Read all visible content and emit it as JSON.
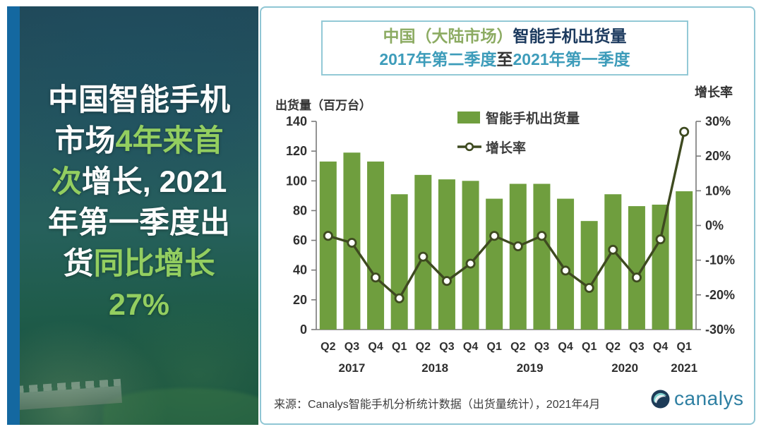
{
  "left_panel": {
    "headline": {
      "line1_white": "中国智能手机",
      "line2_white": "市场",
      "line2_green": "4年来首",
      "line3_green": "次",
      "line3_white": "增长, 2021",
      "line4_white": "年第一季度出",
      "line5_white": "货",
      "line5_green": "同比增长",
      "line6_green": "27%"
    }
  },
  "title_box": {
    "line1_green": "中国（大陆市场）",
    "line1_navy": "智能手机出货量",
    "line2_teal_a": "2017年第二季度",
    "line2_dark": "至",
    "line2_teal_b": "2021年第一季度"
  },
  "chart_data": {
    "type": "bar",
    "title": "中国（大陆市场）智能手机出货量",
    "subtitle": "2017年第二季度至2021年第一季度",
    "categories": [
      "Q2",
      "Q3",
      "Q4",
      "Q1",
      "Q2",
      "Q3",
      "Q4",
      "Q1",
      "Q2",
      "Q3",
      "Q4",
      "Q1",
      "Q2",
      "Q3",
      "Q4",
      "Q1"
    ],
    "year_groups": [
      {
        "label": "2017",
        "count": 3
      },
      {
        "label": "2018",
        "count": 4
      },
      {
        "label": "2019",
        "count": 4
      },
      {
        "label": "2020",
        "count": 4
      },
      {
        "label": "2021",
        "count": 1
      }
    ],
    "series": [
      {
        "name": "智能手机出货量",
        "type": "bar",
        "values": [
          113,
          119,
          113,
          91,
          104,
          101,
          100,
          88,
          98,
          98,
          88,
          73,
          91,
          83,
          84,
          93
        ]
      },
      {
        "name": "增长率",
        "type": "line",
        "unit": "%",
        "values": [
          -3,
          -5,
          -15,
          -21,
          -9,
          -16,
          -11,
          -3,
          -6,
          -3,
          -13,
          -18,
          -7,
          -15,
          -4,
          27
        ]
      }
    ],
    "left_axis": {
      "title": "出货量（百万台）",
      "min": 0,
      "max": 140,
      "step": 20
    },
    "right_axis": {
      "title": "增长率",
      "min": -30,
      "max": 30,
      "step": 10,
      "suffix": "%"
    },
    "grid": false,
    "legend_position": "top-center"
  },
  "legend": {
    "bars_label": "智能手机出货量",
    "line_label": "增长率"
  },
  "footer": {
    "source": "来源：Canalys智能手机分析统计数据（出货量统计），2021年4月",
    "logo_text": "canalys"
  },
  "colors": {
    "bar": "#6f9e3e",
    "line": "#3e4a20",
    "headline_green": "#93ce60",
    "accent_strip_blue": "#1468a0",
    "title_green": "#8cab62",
    "title_navy": "#1c3a5e",
    "title_teal": "#3d9cba",
    "card_border": "#8fc6d4",
    "logo_blue": "#2e7fa2",
    "axis_text": "#2f2f2f"
  }
}
